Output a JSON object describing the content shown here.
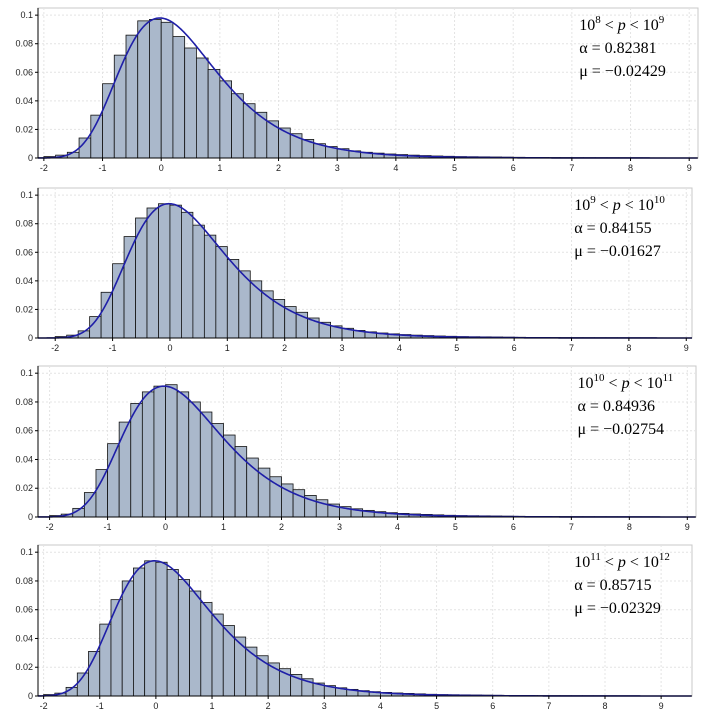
{
  "chart_data": [
    {
      "type": "bar",
      "subtype": "histogram-with-fitted-curve",
      "title": "",
      "xlabel": "",
      "ylabel": "",
      "xlim": [
        -2.1,
        9.15
      ],
      "ylim": [
        0,
        0.105
      ],
      "bin_width": 0.2,
      "x_ticks": [
        "-2",
        "-1",
        "0",
        "1",
        "2",
        "3",
        "4",
        "5",
        "6",
        "7",
        "8",
        "9"
      ],
      "y_ticks": [
        "0",
        "0.02",
        "0.04",
        "0.06",
        "0.08",
        "0.1"
      ],
      "grid": true,
      "legend": "none",
      "curve_color": "#1f1fa8",
      "bar_color": "#aab8cb",
      "annotation": {
        "range_lo_base": "10",
        "range_lo_exp": "8",
        "range_var": "p",
        "range_hi_base": "10",
        "range_hi_exp": "9",
        "alpha_label": "α = 0.82381",
        "mu_label": "μ = −0.02429"
      },
      "fit": {
        "alpha": 0.82381,
        "mu": -0.02429,
        "peak": 0.098
      },
      "series": [
        {
          "name": "histogram",
          "bins_start": -2.0,
          "values": [
            0.001,
            0.002,
            0.004,
            0.014,
            0.03,
            0.052,
            0.072,
            0.086,
            0.096,
            0.097,
            0.095,
            0.085,
            0.077,
            0.07,
            0.062,
            0.054,
            0.045,
            0.038,
            0.032,
            0.026,
            0.021,
            0.017,
            0.013,
            0.01,
            0.008,
            0.0065,
            0.005,
            0.004,
            0.0034,
            0.0028,
            0.0024,
            0.002,
            0.0017,
            0.0014,
            0.0012,
            0.001,
            0.0009,
            0.0008,
            0.0007,
            0.0006,
            0.0005,
            0.0004,
            0.00035,
            0.0003,
            0.00025,
            0.0002,
            0.00018,
            0.00016,
            0.00014,
            0.00012,
            0.0001,
            9e-05,
            8e-05,
            7e-05,
            6e-05,
            5e-05
          ]
        }
      ]
    },
    {
      "type": "bar",
      "subtype": "histogram-with-fitted-curve",
      "title": "",
      "xlabel": "",
      "ylabel": "",
      "xlim": [
        -2.3,
        9.1
      ],
      "ylim": [
        0,
        0.105
      ],
      "bin_width": 0.2,
      "x_ticks": [
        "-2",
        "-1",
        "0",
        "1",
        "2",
        "3",
        "4",
        "5",
        "6",
        "7",
        "8",
        "9"
      ],
      "y_ticks": [
        "0",
        "0.02",
        "0.04",
        "0.06",
        "0.08",
        "0.1"
      ],
      "grid": true,
      "legend": "none",
      "curve_color": "#1f1fa8",
      "bar_color": "#aab8cb",
      "annotation": {
        "range_lo_base": "10",
        "range_lo_exp": "9",
        "range_var": "p",
        "range_hi_base": "10",
        "range_hi_exp": "10",
        "alpha_label": "α = 0.84155",
        "mu_label": "μ = −0.01627"
      },
      "fit": {
        "alpha": 0.84155,
        "mu": -0.01627,
        "peak": 0.094
      },
      "series": [
        {
          "name": "histogram",
          "bins_start": -2.0,
          "values": [
            0.001,
            0.002,
            0.005,
            0.015,
            0.032,
            0.052,
            0.071,
            0.084,
            0.091,
            0.094,
            0.093,
            0.088,
            0.079,
            0.072,
            0.064,
            0.055,
            0.047,
            0.04,
            0.033,
            0.027,
            0.022,
            0.018,
            0.014,
            0.011,
            0.0085,
            0.0068,
            0.0053,
            0.0043,
            0.0035,
            0.0029,
            0.0024,
            0.002,
            0.0017,
            0.0014,
            0.0012,
            0.001,
            0.0009,
            0.0008,
            0.0007,
            0.0006,
            0.0005,
            0.0004,
            0.00035,
            0.0003,
            0.00025,
            0.0002,
            0.00018,
            0.00016,
            0.00014,
            0.00012,
            0.0001,
            9e-05,
            8e-05,
            7e-05,
            6e-05,
            5e-05
          ]
        }
      ]
    },
    {
      "type": "bar",
      "subtype": "histogram-with-fitted-curve",
      "title": "",
      "xlabel": "",
      "ylabel": "",
      "xlim": [
        -2.2,
        9.15
      ],
      "ylim": [
        0,
        0.105
      ],
      "bin_width": 0.2,
      "x_ticks": [
        "-2",
        "-1",
        "0",
        "1",
        "2",
        "3",
        "4",
        "5",
        "6",
        "7",
        "8",
        "9"
      ],
      "y_ticks": [
        "0",
        "0.02",
        "0.04",
        "0.06",
        "0.08",
        "0.1"
      ],
      "grid": true,
      "legend": "none",
      "curve_color": "#1f1fa8",
      "bar_color": "#aab8cb",
      "annotation": {
        "range_lo_base": "10",
        "range_lo_exp": "10",
        "range_var": "p",
        "range_hi_base": "10",
        "range_hi_exp": "11",
        "alpha_label": "α = 0.84936",
        "mu_label": "μ = −0.02754"
      },
      "fit": {
        "alpha": 0.84936,
        "mu": -0.02754,
        "peak": 0.091
      },
      "series": [
        {
          "name": "histogram",
          "bins_start": -2.0,
          "values": [
            0.001,
            0.002,
            0.006,
            0.017,
            0.033,
            0.051,
            0.066,
            0.079,
            0.087,
            0.091,
            0.092,
            0.087,
            0.08,
            0.073,
            0.065,
            0.057,
            0.049,
            0.041,
            0.034,
            0.028,
            0.023,
            0.019,
            0.015,
            0.012,
            0.009,
            0.0072,
            0.0057,
            0.0046,
            0.0037,
            0.003,
            0.0025,
            0.0021,
            0.0018,
            0.0015,
            0.0012,
            0.001,
            0.0009,
            0.0008,
            0.0007,
            0.0006,
            0.0005,
            0.0004,
            0.00035,
            0.0003,
            0.00025,
            0.0002,
            0.00018,
            0.00016,
            0.00014,
            0.00012,
            0.0001,
            9e-05,
            8e-05,
            7e-05,
            6e-05,
            5e-05
          ]
        }
      ]
    },
    {
      "type": "bar",
      "subtype": "histogram-with-fitted-curve",
      "title": "",
      "xlabel": "",
      "ylabel": "",
      "xlim": [
        -2.1,
        9.55
      ],
      "ylim": [
        0,
        0.105
      ],
      "bin_width": 0.2,
      "x_ticks": [
        "-2",
        "-1",
        "0",
        "1",
        "2",
        "3",
        "4",
        "5",
        "6",
        "7",
        "8",
        "9"
      ],
      "y_ticks": [
        "0",
        "0.02",
        "0.04",
        "0.06",
        "0.08",
        "0.1"
      ],
      "grid": true,
      "legend": "none",
      "curve_color": "#1f1fa8",
      "bar_color": "#aab8cb",
      "annotation": {
        "range_lo_base": "10",
        "range_lo_exp": "11",
        "range_var": "p",
        "range_hi_base": "10",
        "range_hi_exp": "12",
        "alpha_label": "α = 0.85715",
        "mu_label": "μ = −0.02329"
      },
      "fit": {
        "alpha": 0.85715,
        "mu": -0.02329,
        "peak": 0.094
      },
      "series": [
        {
          "name": "histogram",
          "bins_start": -2.0,
          "values": [
            0.001,
            0.002,
            0.006,
            0.016,
            0.031,
            0.05,
            0.067,
            0.08,
            0.089,
            0.094,
            0.093,
            0.088,
            0.081,
            0.073,
            0.065,
            0.057,
            0.049,
            0.041,
            0.034,
            0.028,
            0.023,
            0.019,
            0.015,
            0.012,
            0.009,
            0.0072,
            0.0057,
            0.0046,
            0.0037,
            0.003,
            0.0025,
            0.0021,
            0.0018,
            0.0015,
            0.0012,
            0.001,
            0.0009,
            0.0008,
            0.0007,
            0.0006,
            0.0005,
            0.0004,
            0.00035,
            0.0003,
            0.00025,
            0.0002,
            0.00018,
            0.00016,
            0.00014,
            0.00012,
            0.0001,
            9e-05,
            8e-05,
            7e-05,
            6e-05,
            5e-05
          ]
        }
      ]
    }
  ]
}
